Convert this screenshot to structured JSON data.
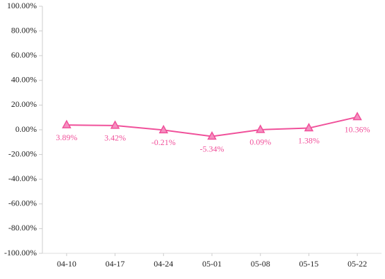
{
  "chart_data": {
    "type": "line",
    "categories": [
      "04-10",
      "04-17",
      "04-24",
      "05-01",
      "05-08",
      "05-15",
      "05-22"
    ],
    "series": [
      {
        "color": "#f0509a",
        "values": [
          3.89,
          3.42,
          -0.21,
          -5.34,
          0.09,
          1.38,
          10.36
        ],
        "value_labels": [
          "3.89%",
          "3.42%",
          "-0.21%",
          "-5.34%",
          "0.09%",
          "1.38%",
          "10.36%"
        ]
      }
    ],
    "ylim": [
      -100,
      100
    ],
    "yticks": [
      {
        "value": -100,
        "label": "-100.00%"
      },
      {
        "value": -80,
        "label": "-80.00%"
      },
      {
        "value": -60,
        "label": "-60.00%"
      },
      {
        "value": -40,
        "label": "-40.00%"
      },
      {
        "value": -20,
        "label": "-20.00%"
      },
      {
        "value": 0,
        "label": "0.00%"
      },
      {
        "value": 20,
        "label": "20.00%"
      },
      {
        "value": 40,
        "label": "40.00%"
      },
      {
        "value": 60,
        "label": "60.00%"
      },
      {
        "value": 80,
        "label": "80.00%"
      },
      {
        "value": 100,
        "label": "100.00%"
      }
    ],
    "grid": false
  }
}
